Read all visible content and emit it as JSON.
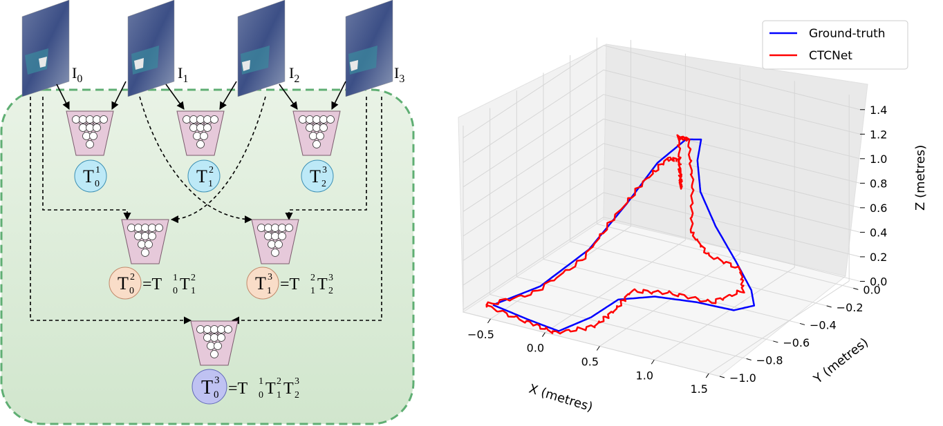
{
  "diagram": {
    "inputs": [
      {
        "base": "I",
        "sub": "0"
      },
      {
        "base": "I",
        "sub": "1"
      },
      {
        "base": "I",
        "sub": "2"
      },
      {
        "base": "I",
        "sub": "3"
      }
    ],
    "level1": [
      {
        "base": "T",
        "sup": "1",
        "sub": "0"
      },
      {
        "base": "T",
        "sup": "2",
        "sub": "1"
      },
      {
        "base": "T",
        "sup": "3",
        "sub": "2"
      }
    ],
    "level2": [
      {
        "base": "T",
        "sup": "2",
        "sub": "0",
        "eq": "=T",
        "f1sup": "1",
        "f1sub": "0",
        "f2": "T",
        "f2sup": "2",
        "f2sub": "1"
      },
      {
        "base": "T",
        "sup": "3",
        "sub": "1",
        "eq": "=T",
        "f1sup": "2",
        "f1sub": "1",
        "f2": "T",
        "f2sup": "3",
        "f2sub": "2"
      }
    ],
    "level3": {
      "base": "T",
      "sup": "3",
      "sub": "0",
      "eq": "=T",
      "f1sup": "1",
      "f1sub": "0",
      "f2": "T",
      "f2sup": "2",
      "f2sub": "1",
      "f3": "T",
      "f3sup": "3",
      "f3sub": "2"
    },
    "colors": {
      "panel_bg": "#d3e6d0",
      "panel_border": "#5fae73",
      "net_fill": "#e6c9da",
      "level1_circle": "#bde9f7",
      "level2_circle": "#f9ddc8",
      "level3_circle": "#bfc2f2"
    }
  },
  "chart_data": {
    "type": "line3d",
    "xlabel": "X (metres)",
    "ylabel": "Y (metres)",
    "zlabel": "Z (metres)",
    "xticks": [
      "−0.5",
      "0.0",
      "0.5",
      "1.0",
      "1.5"
    ],
    "yticks": [
      "0.0",
      "−0.2",
      "−0.4",
      "−0.6",
      "−0.8",
      "−1.0"
    ],
    "zticks": [
      "0.0",
      "0.2",
      "0.4",
      "0.6",
      "0.8",
      "1.0",
      "1.2",
      "1.4"
    ],
    "xlim": [
      -0.75,
      1.6
    ],
    "ylim": [
      -1.0,
      0.05
    ],
    "zlim": [
      -0.02,
      1.5
    ],
    "legend": {
      "placement": "top-right",
      "entries": [
        {
          "label": "Ground-truth",
          "color": "#0000ff"
        },
        {
          "label": "CTCNet",
          "color": "#ff0000"
        }
      ]
    },
    "series": [
      {
        "name": "Ground-truth",
        "color": "#0000ff",
        "points": [
          [
            -0.6,
            -0.9,
            0.0
          ],
          [
            -0.35,
            -0.75,
            0.1
          ],
          [
            -0.15,
            -0.55,
            0.3
          ],
          [
            -0.05,
            -0.35,
            0.55
          ],
          [
            0.05,
            -0.2,
            0.8
          ],
          [
            0.25,
            -0.15,
            1.0
          ],
          [
            0.45,
            -0.2,
            1.08
          ],
          [
            0.6,
            -0.35,
            1.05
          ],
          [
            0.75,
            -0.45,
            0.9
          ],
          [
            0.95,
            -0.5,
            0.7
          ],
          [
            1.2,
            -0.55,
            0.5
          ],
          [
            1.4,
            -0.6,
            0.35
          ],
          [
            1.45,
            -0.62,
            0.25
          ],
          [
            1.3,
            -0.65,
            0.2
          ],
          [
            1.0,
            -0.68,
            0.22
          ],
          [
            0.7,
            -0.75,
            0.25
          ],
          [
            0.45,
            -0.82,
            0.22
          ],
          [
            0.3,
            -0.9,
            0.1
          ],
          [
            0.1,
            -0.98,
            0.0
          ],
          [
            -0.2,
            -0.95,
            0.0
          ],
          [
            -0.6,
            -0.9,
            0.0
          ]
        ]
      },
      {
        "name": "CTCNet",
        "color": "#ff0000",
        "points": [
          [
            -0.65,
            -0.92,
            0.0
          ],
          [
            -0.35,
            -0.8,
            0.08
          ],
          [
            -0.15,
            -0.6,
            0.25
          ],
          [
            -0.08,
            -0.42,
            0.48
          ],
          [
            0.05,
            -0.3,
            0.72
          ],
          [
            0.2,
            -0.25,
            0.9
          ],
          [
            0.35,
            -0.28,
            0.95
          ],
          [
            0.45,
            -0.35,
            0.8
          ],
          [
            0.5,
            -0.4,
            0.95
          ],
          [
            0.55,
            -0.45,
            1.3
          ],
          [
            0.7,
            -0.5,
            1.35
          ],
          [
            0.8,
            -0.55,
            1.05
          ],
          [
            0.85,
            -0.6,
            0.7
          ],
          [
            1.0,
            -0.6,
            0.55
          ],
          [
            1.3,
            -0.6,
            0.5
          ],
          [
            1.35,
            -0.62,
            0.35
          ],
          [
            1.1,
            -0.65,
            0.22
          ],
          [
            0.8,
            -0.72,
            0.28
          ],
          [
            0.55,
            -0.8,
            0.3
          ],
          [
            0.45,
            -0.85,
            0.15
          ],
          [
            0.35,
            -0.92,
            0.05
          ],
          [
            0.1,
            -1.0,
            0.0
          ],
          [
            -0.2,
            -0.97,
            0.0
          ],
          [
            -0.65,
            -0.92,
            0.0
          ]
        ]
      }
    ]
  }
}
